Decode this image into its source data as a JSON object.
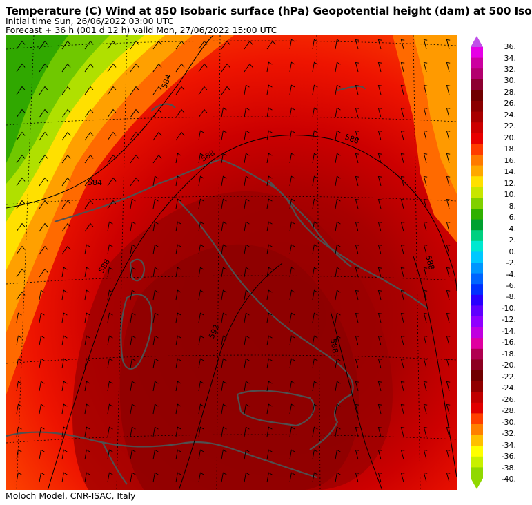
{
  "header": {
    "title": "Temperature (C) Wind  at 850 Isobaric surface (hPa) Geopotential height (dam)  at 500 Iso",
    "initial_time": "Initial time  Sun, 26/06/2022  03:00 UTC",
    "forecast": "Forecast  +  36 h  (001 d 12 h)  valid Mon, 27/06/2022 15:00 UTC"
  },
  "footer": {
    "credit": "Moloch Model, CNR-ISAC, Italy"
  },
  "map": {
    "contour_labels": [
      "584",
      "584",
      "588",
      "588",
      "588",
      "592",
      "588",
      "588"
    ]
  },
  "colorbar": {
    "labels": [
      "36.",
      "34.",
      "32.",
      "30.",
      "28.",
      "26.",
      "24.",
      "22.",
      "20.",
      "18.",
      "16.",
      "14.",
      "12.",
      "10.",
      "8.",
      "6.",
      "4.",
      "2.",
      "0.",
      "-2.",
      "-4.",
      "-6.",
      "-8.",
      "-10.",
      "-12.",
      "-14.",
      "-16.",
      "-18.",
      "-20.",
      "-22.",
      "-24.",
      "-26.",
      "-28.",
      "-30.",
      "-32.",
      "-34.",
      "-36.",
      "-38.",
      "-40."
    ],
    "colors": [
      "#e600e6",
      "#cc00a0",
      "#b3006e",
      "#8c0030",
      "#700000",
      "#8a0000",
      "#a80000",
      "#cc0000",
      "#e80000",
      "#ff3c00",
      "#ff7a00",
      "#ffa800",
      "#ffe000",
      "#c8e600",
      "#80d000",
      "#30b000",
      "#00a030",
      "#00d080",
      "#00e8d0",
      "#00c8ff",
      "#0096ff",
      "#0064ff",
      "#0030ff",
      "#2800ff",
      "#6000ff",
      "#9000ff",
      "#c000e0",
      "#e000a0",
      "#b00050",
      "#8c0020",
      "#700000",
      "#900000",
      "#c00000",
      "#e00000",
      "#ff4000",
      "#ff8000",
      "#ffc000",
      "#ffff00",
      "#c8f000",
      "#90d800"
    ],
    "top_color": "#c050e8",
    "bottom_color": "#90d800"
  }
}
